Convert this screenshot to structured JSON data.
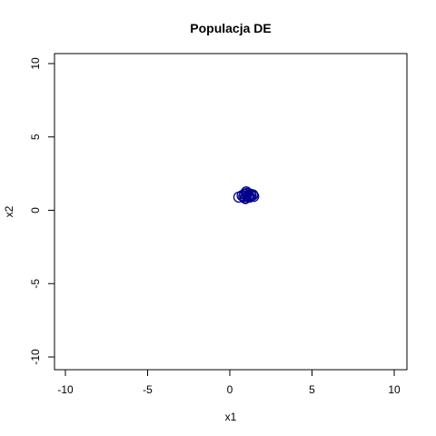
{
  "chart_data": {
    "type": "scatter",
    "title": "Populacja DE",
    "xlabel": "x1",
    "ylabel": "x2",
    "xlim": [
      -11,
      11
    ],
    "ylim": [
      -11,
      11
    ],
    "x_ticks": [
      -10,
      -5,
      0,
      5,
      10
    ],
    "y_ticks": [
      -10,
      -5,
      0,
      5,
      10
    ],
    "x_tick_labels": [
      "-10",
      "-5",
      "0",
      "5",
      "10"
    ],
    "y_tick_labels": [
      "-10",
      "-5",
      "0",
      "5",
      "10"
    ],
    "grid": false,
    "marker": "open-circle",
    "color": "#00008B",
    "points": [
      {
        "x": 0.55,
        "y": 0.9
      },
      {
        "x": 0.75,
        "y": 1.0
      },
      {
        "x": 0.85,
        "y": 0.95
      },
      {
        "x": 0.9,
        "y": 1.1
      },
      {
        "x": 0.95,
        "y": 0.85
      },
      {
        "x": 1.0,
        "y": 1.0
      },
      {
        "x": 1.05,
        "y": 1.15
      },
      {
        "x": 1.1,
        "y": 0.95
      },
      {
        "x": 1.15,
        "y": 1.05
      },
      {
        "x": 1.2,
        "y": 0.9
      },
      {
        "x": 1.25,
        "y": 1.1
      },
      {
        "x": 1.3,
        "y": 1.0
      },
      {
        "x": 1.4,
        "y": 1.05
      },
      {
        "x": 1.45,
        "y": 0.95
      },
      {
        "x": 1.0,
        "y": 1.25
      },
      {
        "x": 0.95,
        "y": 0.8
      }
    ]
  }
}
